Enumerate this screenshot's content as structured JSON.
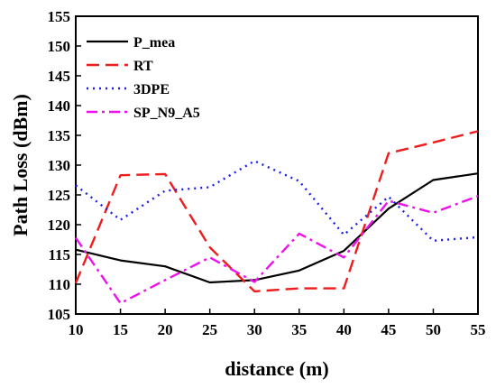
{
  "chart_data": {
    "type": "line",
    "xlabel": "distance (m)",
    "ylabel": "Path Loss (dBm)",
    "xlim": [
      10,
      55
    ],
    "ylim": [
      105,
      155
    ],
    "xticks": [
      10,
      15,
      20,
      25,
      30,
      35,
      40,
      45,
      50,
      55
    ],
    "yticks": [
      105,
      110,
      115,
      120,
      125,
      130,
      135,
      140,
      145,
      150,
      155
    ],
    "grid": false,
    "legend_position": "top-left",
    "series": [
      {
        "name": "P_mea",
        "color": "#000000",
        "dash": "solid",
        "x": [
          10,
          15,
          20,
          25,
          30,
          35,
          40,
          45,
          50,
          55
        ],
        "y": [
          115.8,
          114.0,
          113.0,
          110.3,
          110.7,
          112.3,
          115.6,
          122.7,
          127.5,
          128.6
        ]
      },
      {
        "name": "RT",
        "color": "#ee1c1c",
        "dash": "dashed",
        "x": [
          10,
          15,
          20,
          25,
          30,
          35,
          40,
          45,
          50,
          55
        ],
        "y": [
          110.2,
          128.3,
          128.5,
          116.2,
          108.8,
          109.3,
          109.3,
          132.0,
          133.8,
          135.7
        ]
      },
      {
        "name": "3DPE",
        "color": "#1c1cee",
        "dash": "dotted",
        "x": [
          10,
          15,
          20,
          25,
          30,
          35,
          40,
          45,
          50,
          55
        ],
        "y": [
          126.6,
          120.8,
          125.7,
          126.3,
          130.7,
          127.3,
          118.3,
          124.7,
          117.3,
          117.9
        ]
      },
      {
        "name": "SP_N9_A5",
        "color": "#ee11ee",
        "dash": "dashdot",
        "x": [
          10,
          15,
          20,
          25,
          30,
          35,
          40,
          45,
          50,
          55
        ],
        "y": [
          117.8,
          106.8,
          110.7,
          114.5,
          110.4,
          118.5,
          114.5,
          124.0,
          122.0,
          124.8
        ]
      }
    ]
  }
}
